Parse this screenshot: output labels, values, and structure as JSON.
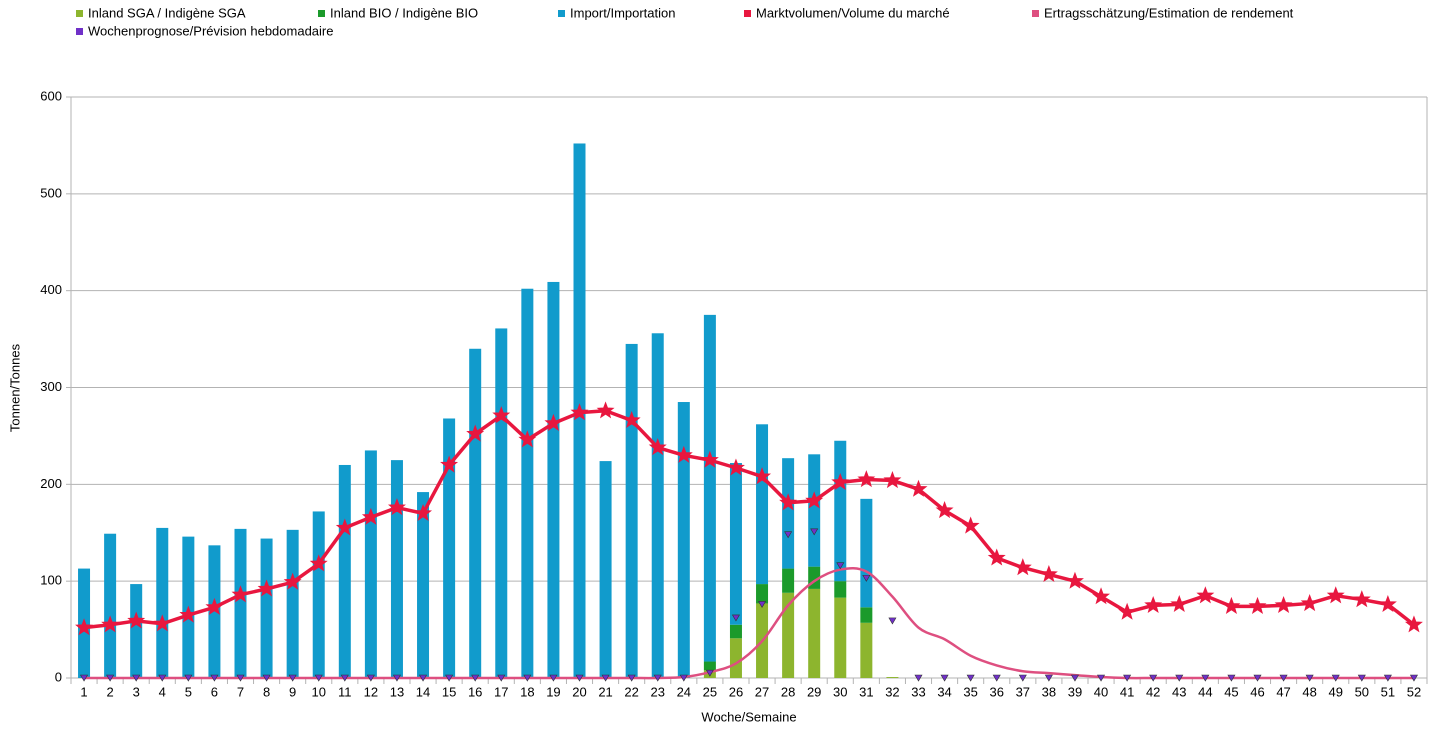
{
  "chart_data": {
    "type": "bar",
    "stacked": true,
    "grid": true,
    "xlabel": "Woche/Semaine",
    "ylabel": "Tonnen/Tonnes",
    "categories": [
      "1",
      "2",
      "3",
      "4",
      "5",
      "6",
      "7",
      "8",
      "9",
      "10",
      "11",
      "12",
      "13",
      "14",
      "15",
      "16",
      "17",
      "18",
      "19",
      "20",
      "21",
      "22",
      "23",
      "24",
      "25",
      "26",
      "27",
      "28",
      "29",
      "30",
      "31",
      "32",
      "33",
      "34",
      "35",
      "36",
      "37",
      "38",
      "39",
      "40",
      "41",
      "42",
      "43",
      "44",
      "45",
      "46",
      "47",
      "48",
      "49",
      "50",
      "51",
      "52"
    ],
    "ylim": [
      0,
      600
    ],
    "yticks": [
      0,
      100,
      200,
      300,
      400,
      500,
      600
    ],
    "series": [
      {
        "name": "Inland SGA / Indigène SGA",
        "type": "bar",
        "color": "#8db52e",
        "values": [
          0,
          0,
          0,
          0,
          0,
          0,
          0,
          0,
          0,
          0,
          0,
          0,
          0,
          0,
          0,
          0,
          0,
          0,
          0,
          0,
          0,
          0,
          0,
          0,
          8,
          41,
          77,
          88,
          92,
          83,
          57,
          1,
          0,
          0,
          0,
          0,
          0,
          0,
          0,
          0,
          0,
          0,
          0,
          0,
          0,
          0,
          0,
          0,
          0,
          0,
          0,
          0
        ]
      },
      {
        "name": "Inland BIO / Indigène BIO",
        "type": "bar",
        "color": "#1b9a2b",
        "values": [
          0,
          0,
          0,
          0,
          0,
          0,
          0,
          0,
          0,
          0,
          0,
          0,
          0,
          0,
          0,
          0,
          0,
          0,
          0,
          0,
          0,
          0,
          0,
          0,
          9,
          14,
          20,
          25,
          23,
          17,
          16,
          0,
          0,
          0,
          0,
          0,
          0,
          0,
          0,
          0,
          0,
          0,
          0,
          0,
          0,
          0,
          0,
          0,
          0,
          0,
          0,
          0
        ]
      },
      {
        "name": "Import/Importation",
        "type": "bar",
        "color": "#119bcc",
        "values": [
          113,
          149,
          97,
          155,
          146,
          137,
          154,
          144,
          153,
          172,
          220,
          235,
          225,
          192,
          268,
          340,
          361,
          402,
          409,
          552,
          224,
          345,
          356,
          285,
          358,
          167,
          165,
          114,
          116,
          145,
          112,
          0,
          0,
          0,
          0,
          0,
          0,
          0,
          0,
          0,
          0,
          0,
          0,
          0,
          0,
          0,
          0,
          0,
          0,
          0,
          0,
          0
        ]
      },
      {
        "name": "Marktvolumen/Volume du marché",
        "type": "line",
        "marker": "star",
        "color": "#e8173f",
        "values": [
          52,
          55,
          59,
          56,
          65,
          73,
          86,
          92,
          99,
          118,
          155,
          166,
          176,
          170,
          220,
          252,
          271,
          246,
          263,
          274,
          276,
          266,
          238,
          230,
          225,
          217,
          208,
          181,
          183,
          202,
          205,
          204,
          195,
          173,
          157,
          124,
          114,
          107,
          100,
          84,
          68,
          75,
          76,
          85,
          74,
          74,
          75,
          77,
          85,
          81,
          76,
          55
        ]
      },
      {
        "name": "Ertragsschätzung/Estimation de rendement",
        "type": "line",
        "smooth": true,
        "color": "#de4f80",
        "values": [
          0,
          0,
          0,
          0,
          0,
          0,
          0,
          0,
          0,
          0,
          0,
          0,
          0,
          0,
          0,
          0,
          0,
          0,
          0,
          0,
          0,
          0,
          0,
          1,
          6,
          15,
          38,
          75,
          100,
          112,
          110,
          84,
          52,
          40,
          23,
          13,
          7,
          5,
          3,
          1,
          0,
          0,
          0,
          0,
          0,
          0,
          0,
          0,
          0,
          0,
          0,
          0
        ]
      },
      {
        "name": "Wochenprognose/Prévision hebdomadaire",
        "type": "scatter",
        "marker": "triangle",
        "color": "#7030c8",
        "values": [
          0,
          0,
          0,
          0,
          0,
          0,
          0,
          0,
          0,
          0,
          0,
          0,
          0,
          0,
          0,
          0,
          0,
          0,
          0,
          0,
          0,
          0,
          0,
          0,
          5,
          62,
          76,
          148,
          151,
          116,
          103,
          59,
          0,
          0,
          0,
          0,
          0,
          0,
          0,
          0,
          0,
          0,
          0,
          0,
          0,
          0,
          0,
          0,
          0,
          0,
          0,
          0
        ]
      }
    ]
  }
}
